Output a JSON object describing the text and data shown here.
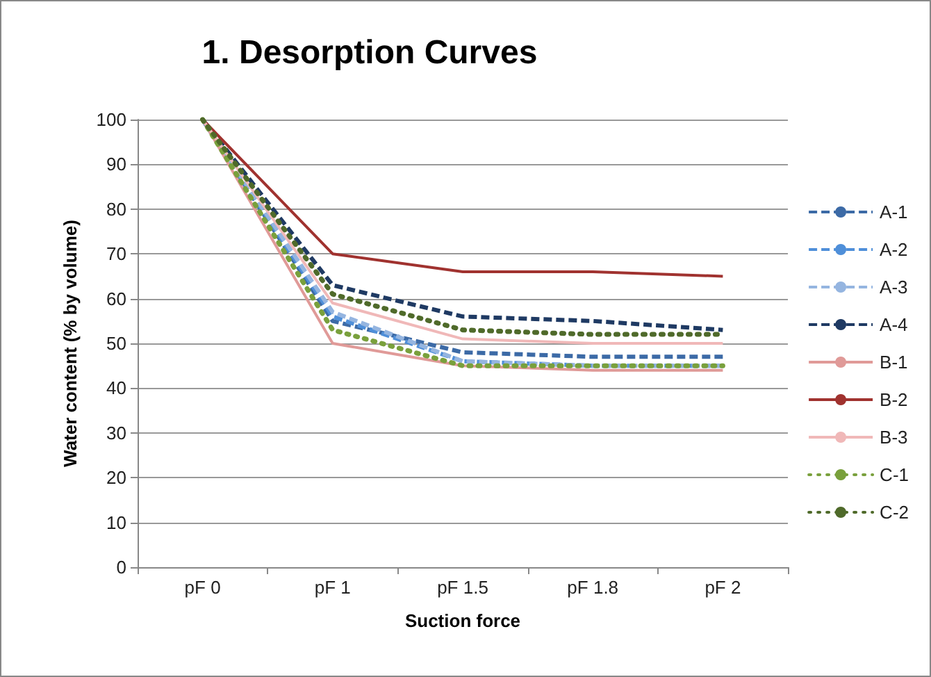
{
  "chart_data": {
    "type": "line",
    "title": "1. Desorption Curves",
    "xlabel": "Suction force",
    "ylabel": "Water content (% by volume)",
    "categories": [
      "pF 0",
      "pF 1",
      "pF 1.5",
      "pF 1.8",
      "pF 2"
    ],
    "ylim": [
      0,
      100
    ],
    "yticks": [
      0,
      10,
      20,
      30,
      40,
      50,
      60,
      70,
      80,
      90,
      100
    ],
    "grid": "y",
    "legend": "right",
    "marker": "none",
    "series": [
      {
        "name": "A-1",
        "color": "#3c6aa6",
        "line_style": "dashed",
        "values": [
          100,
          55,
          48,
          47,
          47
        ]
      },
      {
        "name": "A-2",
        "color": "#4f8fd9",
        "line_style": "dashed",
        "values": [
          100,
          56,
          46,
          45,
          45
        ]
      },
      {
        "name": "A-3",
        "color": "#95b5e0",
        "line_style": "dashed",
        "values": [
          100,
          57,
          46,
          45,
          45
        ]
      },
      {
        "name": "A-4",
        "color": "#1f3a63",
        "line_style": "dashed",
        "values": [
          100,
          63,
          56,
          55,
          53
        ]
      },
      {
        "name": "B-1",
        "color": "#e09a98",
        "line_style": "solid",
        "values": [
          100,
          50,
          45,
          44,
          44
        ]
      },
      {
        "name": "B-2",
        "color": "#a0322f",
        "line_style": "solid",
        "values": [
          100,
          70,
          66,
          66,
          65
        ]
      },
      {
        "name": "B-3",
        "color": "#f0b8b8",
        "line_style": "solid",
        "values": [
          100,
          59,
          51,
          50,
          50
        ]
      },
      {
        "name": "C-1",
        "color": "#79a03c",
        "line_style": "dotted",
        "values": [
          100,
          53,
          45,
          45,
          45
        ]
      },
      {
        "name": "C-2",
        "color": "#4f6a2a",
        "line_style": "dotted",
        "values": [
          100,
          61,
          53,
          52,
          52
        ]
      }
    ]
  }
}
